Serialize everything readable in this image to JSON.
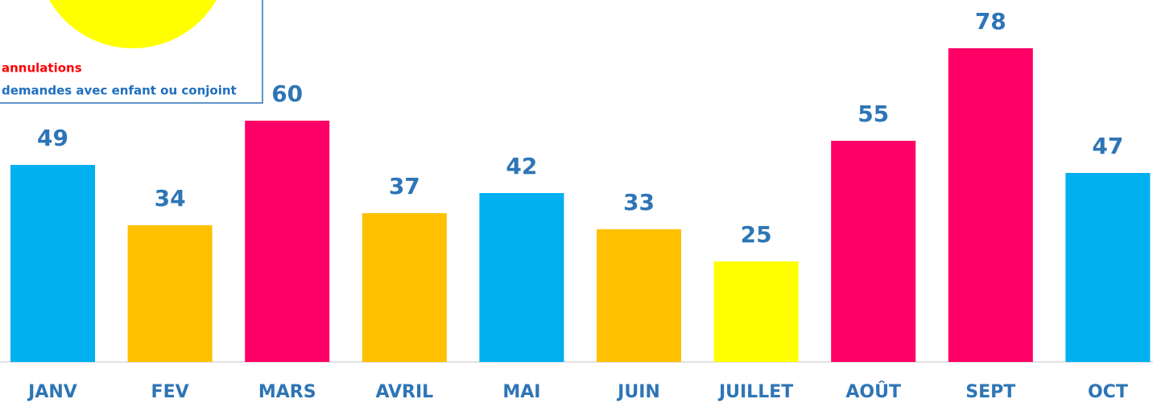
{
  "chart_data": {
    "type": "bar",
    "categories": [
      "JANV",
      "FEV",
      "MARS",
      "AVRIL",
      "MAI",
      "JUIN",
      "JUILLET",
      "AOÛT",
      "SEPT",
      "OCT"
    ],
    "values": [
      49,
      34,
      60,
      37,
      42,
      33,
      25,
      55,
      78,
      47
    ],
    "colors": [
      "#00b0f0",
      "#ffc000",
      "#ff0066",
      "#ffc000",
      "#00b0f0",
      "#ffc000",
      "#ffff00",
      "#ff0066",
      "#ff0066",
      "#00b0f0"
    ],
    "ylim": [
      0,
      90
    ],
    "legend": [
      {
        "name": "annulations",
        "color": "#ff0000"
      },
      {
        "name": "demandes avec enfant ou conjoint",
        "color": "#1f6fbf"
      }
    ]
  }
}
